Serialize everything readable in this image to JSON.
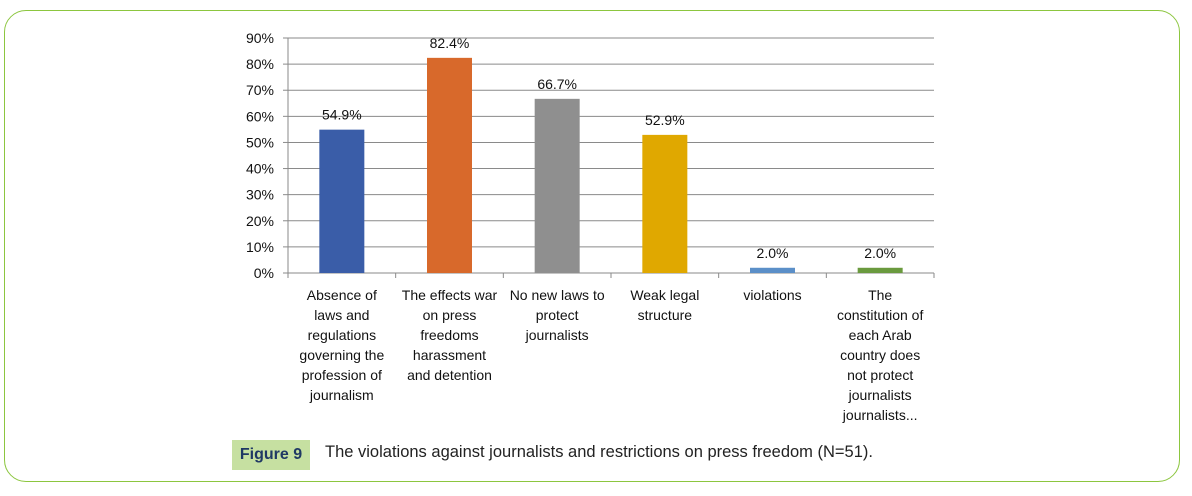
{
  "chart_data": {
    "type": "bar",
    "categories": [
      "Absence of laws and regulations governing the profession of journalism",
      "The effects war on press freedoms harassment and detention",
      "No new laws to protect journalists",
      "Weak legal structure",
      "violations",
      "The constitution of each Arab country does not protect journalists journalists..."
    ],
    "category_lines": [
      [
        "Absence of",
        "laws and",
        "regulations",
        "governing the",
        "profession of",
        "journalism"
      ],
      [
        "The effects war",
        "on press",
        "freedoms",
        "harassment",
        "and detention"
      ],
      [
        "No new laws to",
        "protect",
        "journalists"
      ],
      [
        "Weak legal",
        "structure"
      ],
      [
        "violations"
      ],
      [
        "The",
        "constitution of",
        "each Arab",
        "country does",
        "not protect",
        "journalists",
        "journalists..."
      ]
    ],
    "values": [
      54.9,
      82.4,
      66.7,
      52.9,
      2.0,
      2.0
    ],
    "data_labels": [
      "54.9%",
      "82.4%",
      "66.7%",
      "52.9%",
      "2.0%",
      "2.0%"
    ],
    "colors": [
      "#3a5da8",
      "#d8692b",
      "#8f8f8f",
      "#e0a800",
      "#5b8fc8",
      "#6a9a3e"
    ],
    "ylim": [
      0,
      90
    ],
    "yticks": [
      "0%",
      "10%",
      "20%",
      "30%",
      "40%",
      "50%",
      "60%",
      "70%",
      "80%",
      "90%"
    ],
    "grid": true,
    "title": "",
    "xlabel": "",
    "ylabel": ""
  },
  "caption": {
    "label": "Figure 9",
    "text": "The violations against journalists and restrictions on press freedom (N=51)."
  }
}
